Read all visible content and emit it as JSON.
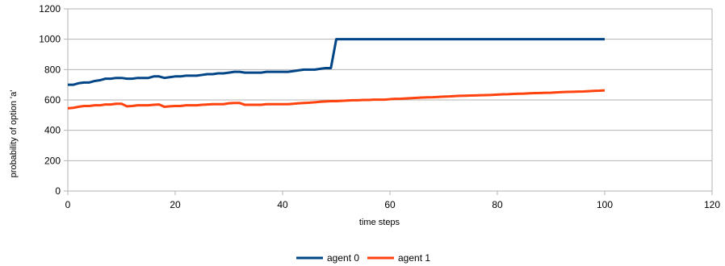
{
  "chart_data": {
    "type": "line",
    "title": "",
    "xlabel": "time steps",
    "ylabel": "probability of option 'a'",
    "xlim": [
      0,
      120
    ],
    "ylim": [
      0,
      1200
    ],
    "xticks": [
      0,
      20,
      40,
      60,
      80,
      100,
      120
    ],
    "yticks": [
      0,
      200,
      400,
      600,
      800,
      1000,
      1200
    ],
    "grid": true,
    "legend_position": "bottom-center",
    "series": [
      {
        "name": "agent 0",
        "color": "#004586",
        "x": [
          0,
          1,
          2,
          3,
          4,
          5,
          6,
          7,
          8,
          9,
          10,
          11,
          12,
          13,
          14,
          15,
          16,
          17,
          18,
          19,
          20,
          21,
          22,
          23,
          24,
          25,
          26,
          27,
          28,
          29,
          30,
          31,
          32,
          33,
          34,
          35,
          36,
          37,
          38,
          39,
          40,
          41,
          42,
          43,
          44,
          45,
          46,
          47,
          48,
          49,
          50,
          51,
          52,
          53,
          54,
          55,
          56,
          57,
          58,
          59,
          60,
          61,
          62,
          63,
          64,
          65,
          66,
          67,
          68,
          69,
          70,
          71,
          72,
          73,
          74,
          75,
          76,
          77,
          78,
          79,
          80,
          81,
          82,
          83,
          84,
          85,
          86,
          87,
          88,
          89,
          90,
          91,
          92,
          93,
          94,
          95,
          96,
          97,
          98,
          99,
          100
        ],
        "values": [
          700,
          700,
          710,
          715,
          715,
          725,
          730,
          740,
          740,
          745,
          745,
          740,
          740,
          745,
          745,
          745,
          755,
          755,
          745,
          750,
          755,
          755,
          760,
          760,
          760,
          765,
          770,
          770,
          775,
          775,
          780,
          785,
          785,
          780,
          780,
          780,
          780,
          785,
          785,
          785,
          785,
          785,
          790,
          795,
          800,
          800,
          800,
          805,
          810,
          810,
          1000,
          1000,
          1000,
          1000,
          1000,
          1000,
          1000,
          1000,
          1000,
          1000,
          1000,
          1000,
          1000,
          1000,
          1000,
          1000,
          1000,
          1000,
          1000,
          1000,
          1000,
          1000,
          1000,
          1000,
          1000,
          1000,
          1000,
          1000,
          1000,
          1000,
          1000,
          1000,
          1000,
          1000,
          1000,
          1000,
          1000,
          1000,
          1000,
          1000,
          1000,
          1000,
          1000,
          1000,
          1000,
          1000,
          1000,
          1000,
          1000,
          1000,
          1000
        ]
      },
      {
        "name": "agent 1",
        "color": "#ff420e",
        "x": [
          0,
          1,
          2,
          3,
          4,
          5,
          6,
          7,
          8,
          9,
          10,
          11,
          12,
          13,
          14,
          15,
          16,
          17,
          18,
          19,
          20,
          21,
          22,
          23,
          24,
          25,
          26,
          27,
          28,
          29,
          30,
          31,
          32,
          33,
          34,
          35,
          36,
          37,
          38,
          39,
          40,
          41,
          42,
          43,
          44,
          45,
          46,
          47,
          48,
          49,
          50,
          51,
          52,
          53,
          54,
          55,
          56,
          57,
          58,
          59,
          60,
          61,
          62,
          63,
          64,
          65,
          66,
          67,
          68,
          69,
          70,
          71,
          72,
          73,
          74,
          75,
          76,
          77,
          78,
          79,
          80,
          81,
          82,
          83,
          84,
          85,
          86,
          87,
          88,
          89,
          90,
          91,
          92,
          93,
          94,
          95,
          96,
          97,
          98,
          99,
          100
        ],
        "values": [
          545,
          548,
          555,
          560,
          560,
          565,
          565,
          570,
          570,
          575,
          575,
          558,
          560,
          565,
          565,
          565,
          568,
          570,
          555,
          558,
          560,
          560,
          565,
          565,
          565,
          568,
          570,
          572,
          572,
          572,
          578,
          580,
          580,
          568,
          568,
          568,
          568,
          572,
          572,
          572,
          572,
          572,
          575,
          578,
          580,
          582,
          585,
          588,
          590,
          592,
          592,
          594,
          596,
          598,
          598,
          600,
          600,
          602,
          602,
          602,
          605,
          607,
          608,
          610,
          612,
          614,
          616,
          617,
          618,
          620,
          622,
          623,
          625,
          627,
          628,
          629,
          630,
          631,
          632,
          633,
          635,
          637,
          638,
          640,
          641,
          642,
          644,
          645,
          646,
          647,
          648,
          650,
          652,
          653,
          654,
          655,
          656,
          658,
          660,
          661,
          663
        ]
      }
    ]
  }
}
